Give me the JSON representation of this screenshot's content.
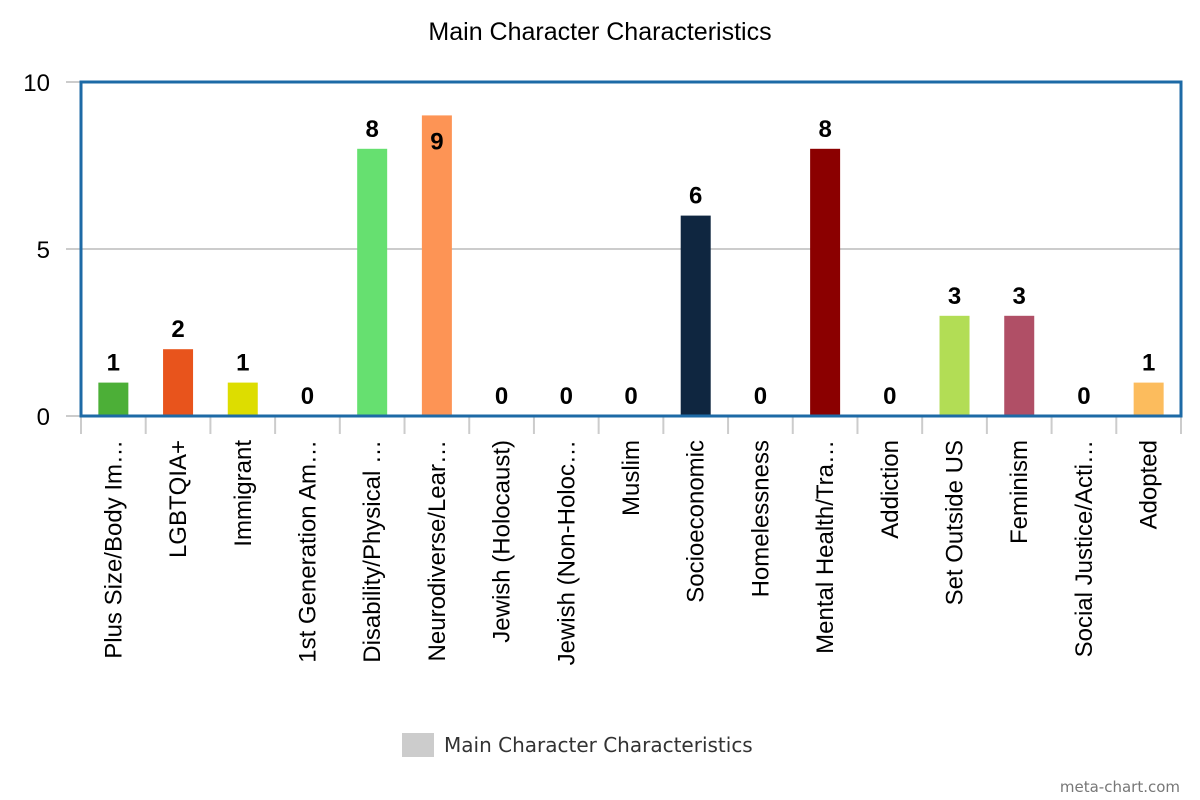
{
  "chart_data": {
    "type": "bar",
    "title": "Main Character Characteristics",
    "xlabel": "",
    "ylabel": "",
    "ylim": [
      0,
      10
    ],
    "yticks": [
      "0",
      "5",
      "10"
    ],
    "categories": [
      "Plus Size/Body Im…",
      "LGBTQIA+",
      "Immigrant",
      "1st Generation Am…",
      "Disability/Physical …",
      "Neurodiverse/Lear…",
      "Jewish (Holocaust)",
      "Jewish (Non-Holoc…",
      "Muslim",
      "Socioeconomic",
      "Homelessness",
      "Mental Health/Tra…",
      "Addiction",
      "Set Outside US",
      "Feminism",
      "Social Justice/Acti…",
      "Adopted"
    ],
    "series": [
      {
        "name": "Main Character Characteristics",
        "values": [
          1,
          2,
          1,
          0,
          8,
          9,
          0,
          0,
          0,
          6,
          0,
          8,
          0,
          3,
          3,
          0,
          1
        ],
        "data_labels": [
          "1",
          "2",
          "1",
          "0",
          "8",
          "9",
          "0",
          "0",
          "0",
          "6",
          "0",
          "8",
          "0",
          "3",
          "3",
          "0",
          "1"
        ]
      }
    ],
    "bar_colors": [
      "#4caf37",
      "#e8541c",
      "#dddd00",
      "#cccccc",
      "#66e070",
      "#fd9455",
      "#cccccc",
      "#cccccc",
      "#cccccc",
      "#0f2640",
      "#cccccc",
      "#8b0000",
      "#cccccc",
      "#b2dd55",
      "#b04f66",
      "#cccccc",
      "#fcbc5d"
    ],
    "legend": {
      "label": "Main Character Characteristics",
      "swatch_color": "#cccccc",
      "position": "bottom-center"
    },
    "grid": true,
    "gridline_color": "#bbbbbb",
    "border_color": "#1d6aa6"
  },
  "watermark": "meta-chart.com"
}
